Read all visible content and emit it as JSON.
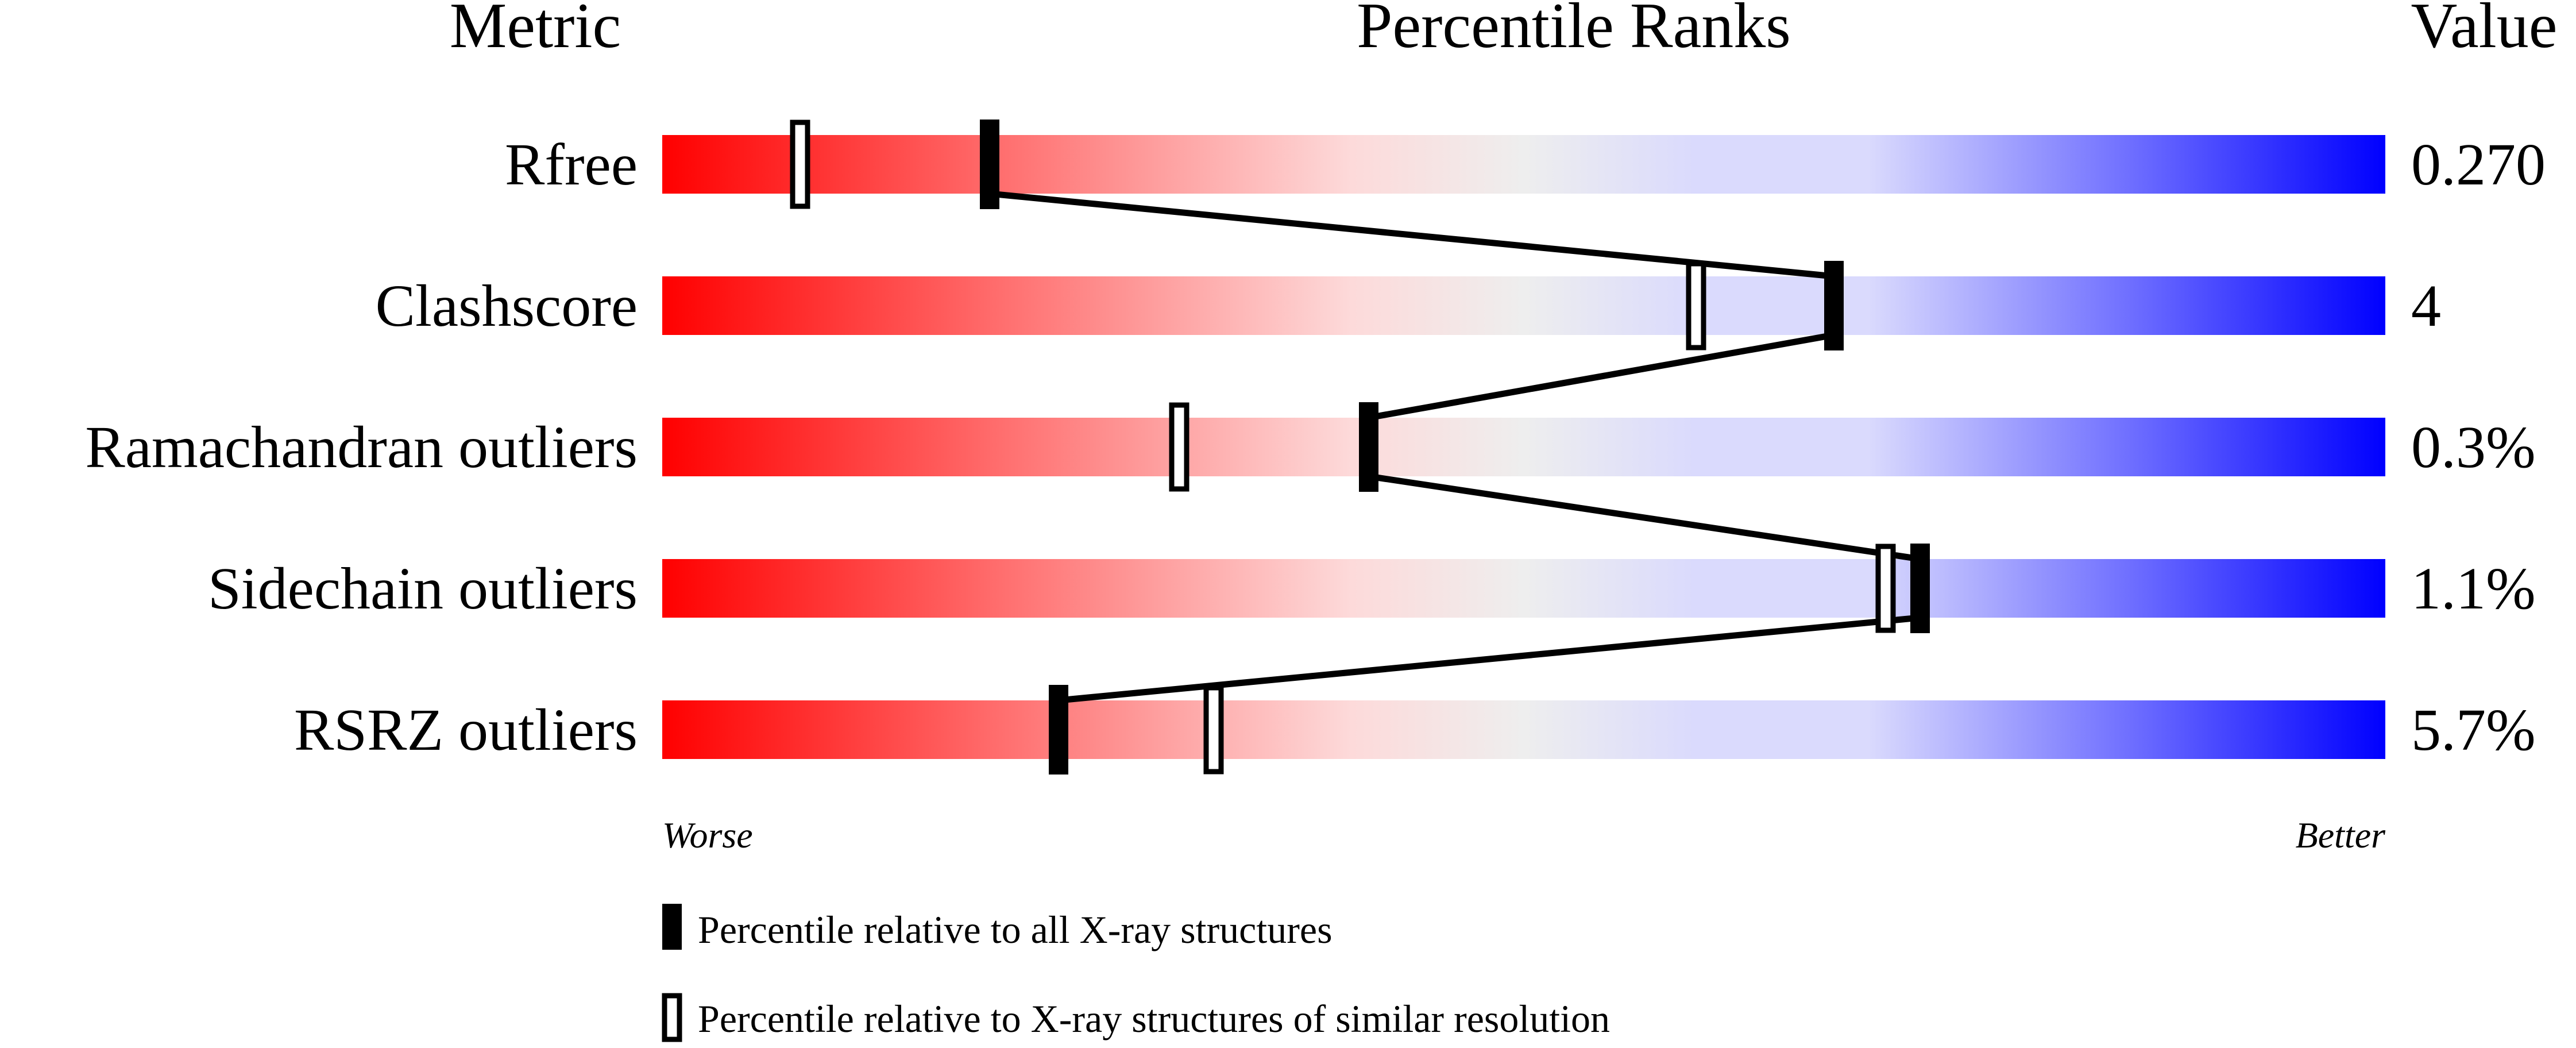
{
  "chart_data": {
    "type": "percentile-slider",
    "headers": {
      "metric": "Metric",
      "ranks": "Percentile Ranks",
      "value": "Value"
    },
    "axis": {
      "min": 0,
      "max": 100,
      "worse_label": "Worse",
      "better_label": "Better"
    },
    "gradient_colors": [
      "#ff0000",
      "#ff7070",
      "#fddada",
      "#eeeeee",
      "#dadafd",
      "#dadafd",
      "#7070ff",
      "#0000ff"
    ],
    "rows": [
      {
        "metric": "Rfree",
        "value": "0.270",
        "percentile_all": 19,
        "percentile_similar": 8
      },
      {
        "metric": "Clashscore",
        "value": "4",
        "percentile_all": 68,
        "percentile_similar": 60
      },
      {
        "metric": "Ramachandran outliers",
        "value": "0.3%",
        "percentile_all": 41,
        "percentile_similar": 30
      },
      {
        "metric": "Sidechain outliers",
        "value": "1.1%",
        "percentile_all": 73,
        "percentile_similar": 71
      },
      {
        "metric": "RSRZ outliers",
        "value": "5.7%",
        "percentile_all": 23,
        "percentile_similar": 32
      }
    ],
    "legend": [
      {
        "marker": "filled",
        "label": "Percentile relative to all X-ray structures"
      },
      {
        "marker": "open",
        "label": "Percentile relative to X-ray structures of similar resolution"
      }
    ]
  }
}
